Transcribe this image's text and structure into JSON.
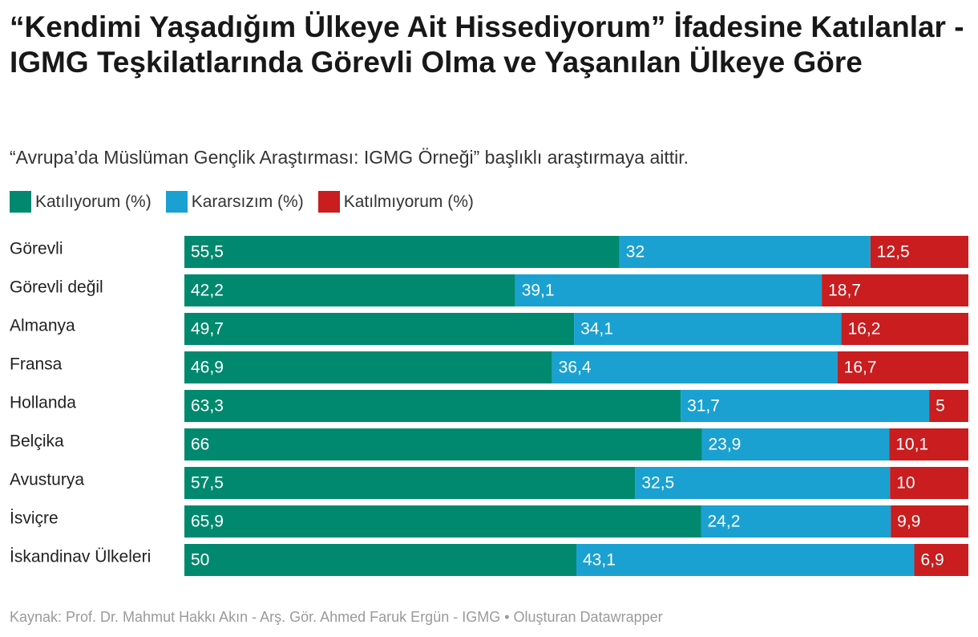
{
  "header": {
    "title": " “Kendimi Yaşadığım Ülkeye Ait Hissediyorum” İfadesine Katılanlar - IGMG Teşkilatlarında Görevli Olma ve Yaşanılan Ülkeye Göre",
    "subtitle": "“Avrupa’da Müslüman Gençlik Araştırması: IGMG Örneği” başlıklı araştırmaya aittir."
  },
  "legend": [
    {
      "label": "Katılıyorum (%)",
      "color": "#00896e"
    },
    {
      "label": "Kararsızım (%)",
      "color": "#1aa1d1"
    },
    {
      "label": "Katılmıyorum (%)",
      "color": "#c91d1f"
    }
  ],
  "chart_data": {
    "type": "bar",
    "orientation": "horizontal",
    "stacked": true,
    "title": " “Kendimi Yaşadığım Ülkeye Ait Hissediyorum” İfadesine Katılanlar - IGMG Teşkilatlarında Görevli Olma ve Yaşanılan Ülkeye Göre",
    "subtitle": "“Avrupa’da Müslüman Gençlik Araştırması: IGMG Örneği” başlıklı araştırmaya aittir.",
    "categories": [
      "Görevli",
      "Görevli değil",
      "Almanya",
      "Fransa",
      "Hollanda",
      "Belçika",
      "Avusturya",
      "İsviçre",
      "İskandinav Ülkeleri"
    ],
    "series": [
      {
        "name": "Katılıyorum (%)",
        "color": "#00896e",
        "values": [
          55.5,
          42.2,
          49.7,
          46.9,
          63.3,
          66,
          57.5,
          65.9,
          50
        ]
      },
      {
        "name": "Kararsızım (%)",
        "color": "#1aa1d1",
        "values": [
          32,
          39.1,
          34.1,
          36.4,
          31.7,
          23.9,
          32.5,
          24.2,
          43.1
        ]
      },
      {
        "name": "Katılmıyorum (%)",
        "color": "#c91d1f",
        "values": [
          12.5,
          18.7,
          16.2,
          16.7,
          5,
          10.1,
          10,
          9.9,
          6.9
        ]
      }
    ],
    "xlim": [
      0,
      100
    ],
    "legend_position": "top-left",
    "decimal_separator": ","
  },
  "footer": {
    "source": "Kaynak: Prof. Dr. Mahmut Hakkı Akın - Arş. Gör. Ahmed Faruk Ergün - IGMG • Oluşturan Datawrapper"
  }
}
